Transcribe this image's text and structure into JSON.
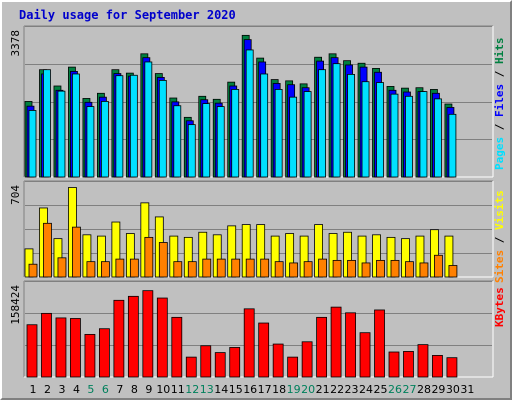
{
  "title": "Daily usage for September 2020",
  "colors": {
    "hits": "#008040",
    "files": "#0000ff",
    "pages": "#00e0ff",
    "visits": "#ffff00",
    "sites": "#ff8000",
    "kbytes": "#ff0000",
    "title": "#0000cc",
    "weekend_label": "#00805c",
    "grid": "#808080"
  },
  "chart_data": [
    {
      "type": "bar",
      "name": "hits-files-pages",
      "ylim": [
        0,
        3378
      ],
      "y_max_label": "3378",
      "right_label": [
        {
          "text": "Pages",
          "color": "#00e0ff"
        },
        {
          "text": " / ",
          "color": "#000000"
        },
        {
          "text": "Files",
          "color": "#0000ff"
        },
        {
          "text": " / ",
          "color": "#000000"
        },
        {
          "text": "Hits",
          "color": "#008040"
        }
      ],
      "categories": [
        "1",
        "2",
        "3",
        "4",
        "5",
        "6",
        "7",
        "8",
        "9",
        "10",
        "11",
        "12",
        "13",
        "14",
        "15",
        "16",
        "17",
        "18",
        "19",
        "20",
        "21",
        "22",
        "23",
        "24",
        "25",
        "26",
        "27",
        "28",
        "29",
        "30",
        "31"
      ],
      "series": [
        {
          "name": "Hits",
          "values": [
            1760,
            2500,
            2120,
            2560,
            1830,
            1950,
            2500,
            2420,
            2870,
            2410,
            1840,
            1390,
            1880,
            1810,
            2210,
            3300,
            2770,
            2270,
            2240,
            2170,
            2790,
            2870,
            2710,
            2650,
            2530,
            2110,
            2070,
            2080,
            2040,
            1700,
            0
          ]
        },
        {
          "name": "Files",
          "values": [
            1650,
            2400,
            2020,
            2460,
            1740,
            1860,
            2410,
            2350,
            2780,
            2320,
            1750,
            1310,
            1800,
            1720,
            2120,
            3200,
            2680,
            2180,
            2150,
            2080,
            2700,
            2780,
            2610,
            2560,
            2440,
            2020,
            1980,
            1990,
            1950,
            1620,
            0
          ]
        },
        {
          "name": "Pages",
          "values": [
            1550,
            2500,
            2000,
            2400,
            1640,
            1760,
            2360,
            2370,
            2680,
            2250,
            1660,
            1220,
            1710,
            1640,
            2040,
            2960,
            2400,
            2040,
            1860,
            1990,
            2500,
            2640,
            2390,
            2220,
            2200,
            1930,
            1880,
            1990,
            1820,
            1460,
            0
          ]
        }
      ]
    },
    {
      "type": "bar",
      "name": "visits-sites",
      "ylim": [
        0,
        704
      ],
      "y_max_label": "704",
      "right_label": [
        {
          "text": "Sites",
          "color": "#ff8000"
        },
        {
          "text": " / ",
          "color": "#000000"
        },
        {
          "text": "Visits",
          "color": "#ffff00"
        }
      ],
      "categories": [
        "1",
        "2",
        "3",
        "4",
        "5",
        "6",
        "7",
        "8",
        "9",
        "10",
        "11",
        "12",
        "13",
        "14",
        "15",
        "16",
        "17",
        "18",
        "19",
        "20",
        "21",
        "22",
        "23",
        "24",
        "25",
        "26",
        "27",
        "28",
        "29",
        "30",
        "31"
      ],
      "series": [
        {
          "name": "Visits",
          "values": [
            220,
            540,
            300,
            700,
            330,
            320,
            430,
            340,
            580,
            470,
            320,
            310,
            350,
            330,
            400,
            410,
            410,
            320,
            340,
            320,
            410,
            340,
            350,
            320,
            330,
            310,
            300,
            320,
            370,
            320,
            0
          ]
        },
        {
          "name": "Sites",
          "values": [
            100,
            420,
            150,
            390,
            120,
            120,
            140,
            140,
            310,
            270,
            120,
            120,
            140,
            140,
            140,
            140,
            140,
            120,
            110,
            120,
            140,
            130,
            130,
            110,
            130,
            130,
            120,
            110,
            170,
            90,
            0
          ]
        }
      ]
    },
    {
      "type": "bar",
      "name": "kbytes",
      "ylim": [
        0,
        158424
      ],
      "y_max_label": "158424",
      "right_label": [
        {
          "text": "KBytes",
          "color": "#ff0000"
        }
      ],
      "categories": [
        "1",
        "2",
        "3",
        "4",
        "5",
        "6",
        "7",
        "8",
        "9",
        "10",
        "11",
        "12",
        "13",
        "14",
        "15",
        "16",
        "17",
        "18",
        "19",
        "20",
        "21",
        "22",
        "23",
        "24",
        "25",
        "26",
        "27",
        "28",
        "29",
        "30",
        "31"
      ],
      "series": [
        {
          "name": "KBytes",
          "values": [
            92000,
            112000,
            104000,
            103000,
            75000,
            85000,
            135000,
            142000,
            152000,
            139000,
            105000,
            35000,
            55000,
            43000,
            52000,
            120000,
            95000,
            58000,
            35000,
            62000,
            105000,
            123000,
            113000,
            78000,
            118000,
            44000,
            45000,
            57000,
            38000,
            34000,
            0
          ]
        }
      ]
    }
  ],
  "x_labels": [
    {
      "text": "1",
      "weekend": false
    },
    {
      "text": "2",
      "weekend": false
    },
    {
      "text": "3",
      "weekend": false
    },
    {
      "text": "4",
      "weekend": false
    },
    {
      "text": "5",
      "weekend": true
    },
    {
      "text": "6",
      "weekend": true
    },
    {
      "text": "7",
      "weekend": false
    },
    {
      "text": "8",
      "weekend": false
    },
    {
      "text": "9",
      "weekend": false
    },
    {
      "text": "10",
      "weekend": false
    },
    {
      "text": "11",
      "weekend": false
    },
    {
      "text": "12",
      "weekend": true
    },
    {
      "text": "13",
      "weekend": true
    },
    {
      "text": "14",
      "weekend": false
    },
    {
      "text": "15",
      "weekend": false
    },
    {
      "text": "16",
      "weekend": false
    },
    {
      "text": "17",
      "weekend": false
    },
    {
      "text": "18",
      "weekend": false
    },
    {
      "text": "19",
      "weekend": true
    },
    {
      "text": "20",
      "weekend": true
    },
    {
      "text": "21",
      "weekend": false
    },
    {
      "text": "22",
      "weekend": false
    },
    {
      "text": "23",
      "weekend": false
    },
    {
      "text": "24",
      "weekend": false
    },
    {
      "text": "25",
      "weekend": false
    },
    {
      "text": "26",
      "weekend": true
    },
    {
      "text": "27",
      "weekend": true
    },
    {
      "text": "28",
      "weekend": false
    },
    {
      "text": "29",
      "weekend": false
    },
    {
      "text": "30",
      "weekend": false
    },
    {
      "text": "31",
      "weekend": false
    }
  ]
}
